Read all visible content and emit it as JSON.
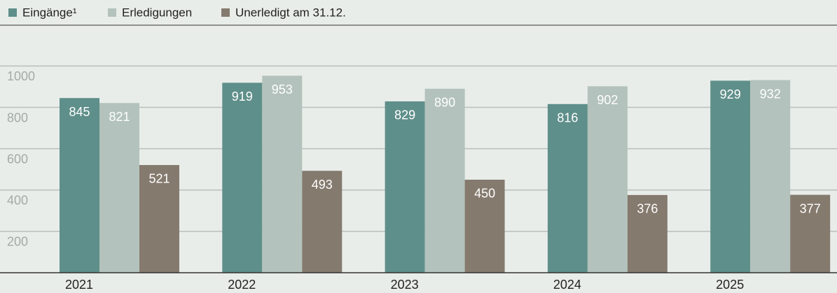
{
  "chart_data": {
    "type": "bar",
    "categories": [
      "2021",
      "2022",
      "2023",
      "2024",
      "2025"
    ],
    "series": [
      {
        "name": "Eingänge¹",
        "color": "#5f8f8a",
        "values": [
          845,
          919,
          829,
          816,
          929
        ]
      },
      {
        "name": "Erledigungen",
        "color": "#b3c2bc",
        "values": [
          821,
          953,
          890,
          902,
          932
        ]
      },
      {
        "name": "Unerledigt am 31.12.",
        "color": "#857a6e",
        "values": [
          521,
          493,
          450,
          376,
          377
        ]
      }
    ],
    "ylim": [
      0,
      1000
    ],
    "yticks": [
      200,
      400,
      600,
      800,
      1000
    ],
    "grid": true
  }
}
